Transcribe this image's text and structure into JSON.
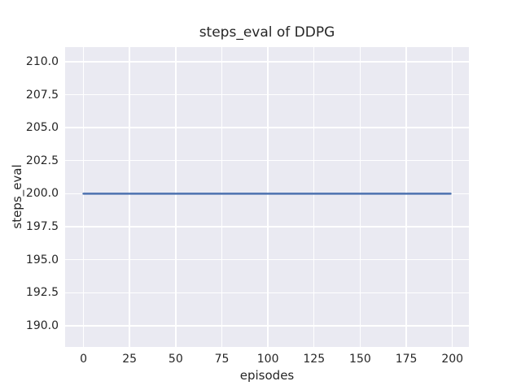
{
  "chart_data": {
    "type": "line",
    "title": "steps_eval of DDPG",
    "xlabel": "episodes",
    "ylabel": "steps_eval",
    "xlim": [
      -9.95,
      208.95
    ],
    "ylim": [
      188.4,
      211.1
    ],
    "xtick_values": [
      0,
      25,
      50,
      75,
      100,
      125,
      150,
      175,
      200
    ],
    "xtick_labels": [
      "0",
      "25",
      "50",
      "75",
      "100",
      "125",
      "150",
      "175",
      "200"
    ],
    "ytick_values": [
      190.0,
      192.5,
      195.0,
      197.5,
      200.0,
      202.5,
      205.0,
      207.5,
      210.0
    ],
    "ytick_labels": [
      "190.0",
      "192.5",
      "195.0",
      "197.5",
      "200.0",
      "202.5",
      "205.0",
      "207.5",
      "210.0"
    ],
    "grid": true,
    "legend_position": "none",
    "series": [
      {
        "name": "steps_eval",
        "x": [
          0,
          199
        ],
        "y": [
          200.0,
          200.0
        ]
      }
    ],
    "style": {
      "plot_background": "#EAEAF2",
      "grid_color": "#FFFFFF",
      "text_color": "#262626",
      "line_color": "#4C72B0",
      "line_width": 2.5
    }
  }
}
